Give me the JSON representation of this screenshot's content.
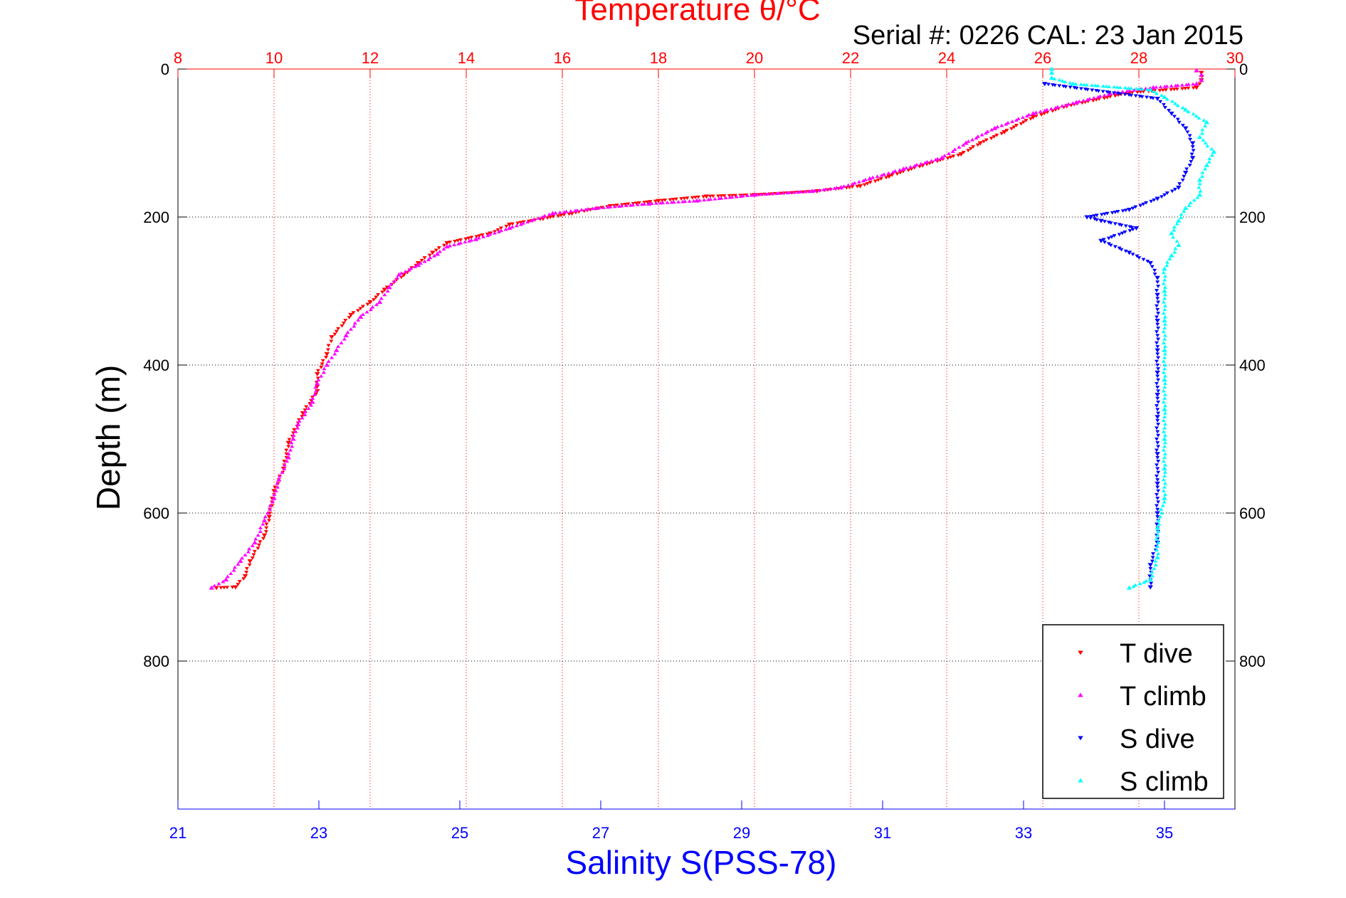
{
  "chart_data": {
    "type": "scatter",
    "title": "Temperature θ/°C",
    "subtitle": "Serial #: 0226  CAL: 23 Jan 2015",
    "xlabel": "Salinity S(PSS-78)",
    "ylabel": "Depth (m)",
    "x_top_axis": {
      "label": "Temperature θ/°C",
      "lim": [
        8,
        30
      ],
      "ticks": [
        8,
        10,
        12,
        14,
        16,
        18,
        20,
        22,
        24,
        26,
        28,
        30
      ],
      "color": "#ff0000"
    },
    "x_bottom_axis": {
      "label": "Salinity S(PSS-78)",
      "lim": [
        21,
        36
      ],
      "ticks": [
        21,
        23,
        25,
        27,
        29,
        31,
        33,
        35
      ],
      "color": "#0000ff"
    },
    "y_axis": {
      "lim": [
        0,
        1000
      ],
      "reversed": true,
      "ticks": [
        0,
        200,
        400,
        600,
        800
      ]
    },
    "grid": true,
    "legend_position": "bottom-right",
    "series": [
      {
        "name": "T dive",
        "axis": "temperature",
        "color": "#ff0000",
        "marker": "triangle-down",
        "points": [
          [
            29.3,
            5
          ],
          [
            29.3,
            15
          ],
          [
            29.2,
            25
          ],
          [
            27.8,
            32
          ],
          [
            26.5,
            50
          ],
          [
            25.8,
            65
          ],
          [
            25.2,
            85
          ],
          [
            24.7,
            100
          ],
          [
            24.3,
            115
          ],
          [
            23.5,
            130
          ],
          [
            22.8,
            145
          ],
          [
            22.2,
            158
          ],
          [
            21.3,
            165
          ],
          [
            20.0,
            170
          ],
          [
            19.0,
            172
          ],
          [
            18.0,
            178
          ],
          [
            17.0,
            185
          ],
          [
            16.2,
            195
          ],
          [
            15.6,
            202
          ],
          [
            14.9,
            210
          ],
          [
            14.5,
            222
          ],
          [
            13.6,
            235
          ],
          [
            13.3,
            248
          ],
          [
            13.0,
            262
          ],
          [
            12.7,
            278
          ],
          [
            12.3,
            298
          ],
          [
            12.0,
            315
          ],
          [
            11.6,
            332
          ],
          [
            11.2,
            362
          ],
          [
            11.1,
            385
          ],
          [
            10.9,
            412
          ],
          [
            10.9,
            435
          ],
          [
            10.6,
            465
          ],
          [
            10.3,
            505
          ],
          [
            10.2,
            540
          ],
          [
            10.0,
            570
          ],
          [
            9.9,
            605
          ],
          [
            9.8,
            630
          ],
          [
            9.5,
            665
          ],
          [
            9.4,
            685
          ],
          [
            9.2,
            700
          ],
          [
            8.8,
            701
          ]
        ]
      },
      {
        "name": "T climb",
        "axis": "temperature",
        "color": "#ff00ff",
        "marker": "triangle-up",
        "points": [
          [
            8.7,
            701
          ],
          [
            9.0,
            690
          ],
          [
            9.3,
            665
          ],
          [
            9.6,
            640
          ],
          [
            9.8,
            610
          ],
          [
            10.0,
            580
          ],
          [
            10.1,
            555
          ],
          [
            10.3,
            525
          ],
          [
            10.4,
            500
          ],
          [
            10.5,
            480
          ],
          [
            10.8,
            450
          ],
          [
            10.9,
            425
          ],
          [
            11.1,
            400
          ],
          [
            11.3,
            380
          ],
          [
            11.5,
            360
          ],
          [
            11.8,
            335
          ],
          [
            12.2,
            315
          ],
          [
            12.4,
            295
          ],
          [
            12.6,
            278
          ],
          [
            13.0,
            265
          ],
          [
            13.4,
            250
          ],
          [
            13.6,
            240
          ],
          [
            14.2,
            230
          ],
          [
            14.9,
            215
          ],
          [
            15.8,
            195
          ],
          [
            16.7,
            188
          ],
          [
            17.8,
            182
          ],
          [
            18.8,
            178
          ],
          [
            20.0,
            170
          ],
          [
            21.2,
            165
          ],
          [
            21.8,
            160
          ],
          [
            22.4,
            148
          ],
          [
            23.1,
            135
          ],
          [
            23.9,
            120
          ],
          [
            24.4,
            100
          ],
          [
            25.0,
            80
          ],
          [
            25.8,
            60
          ],
          [
            26.7,
            45
          ],
          [
            27.5,
            32
          ],
          [
            28.3,
            25
          ],
          [
            29.2,
            20
          ],
          [
            29.3,
            15
          ],
          [
            29.3,
            8
          ],
          [
            29.2,
            2
          ]
        ]
      },
      {
        "name": "S dive",
        "axis": "salinity",
        "color": "#0000ff",
        "marker": "triangle-down",
        "points": [
          [
            33.3,
            20
          ],
          [
            34.9,
            40
          ],
          [
            35.1,
            60
          ],
          [
            35.3,
            80
          ],
          [
            35.4,
            100
          ],
          [
            35.4,
            120
          ],
          [
            35.3,
            140
          ],
          [
            35.2,
            160
          ],
          [
            34.9,
            175
          ],
          [
            34.5,
            190
          ],
          [
            33.9,
            200
          ],
          [
            34.1,
            205
          ],
          [
            34.6,
            215
          ],
          [
            34.1,
            232
          ],
          [
            34.5,
            248
          ],
          [
            34.8,
            262
          ],
          [
            34.9,
            282
          ],
          [
            34.9,
            305
          ],
          [
            34.9,
            340
          ],
          [
            34.9,
            380
          ],
          [
            34.9,
            410
          ],
          [
            34.9,
            440
          ],
          [
            34.9,
            470
          ],
          [
            34.9,
            520
          ],
          [
            34.9,
            560
          ],
          [
            34.9,
            600
          ],
          [
            34.9,
            640
          ],
          [
            34.8,
            670
          ],
          [
            34.8,
            700
          ]
        ]
      },
      {
        "name": "S climb",
        "axis": "salinity",
        "color": "#00ffff",
        "marker": "triangle-up",
        "points": [
          [
            34.5,
            701
          ],
          [
            34.8,
            690
          ],
          [
            34.9,
            660
          ],
          [
            34.9,
            620
          ],
          [
            35.0,
            580
          ],
          [
            35.0,
            540
          ],
          [
            35.0,
            500
          ],
          [
            35.0,
            460
          ],
          [
            35.0,
            420
          ],
          [
            35.0,
            380
          ],
          [
            35.0,
            340
          ],
          [
            35.0,
            300
          ],
          [
            35.0,
            270
          ],
          [
            35.1,
            252
          ],
          [
            35.2,
            238
          ],
          [
            35.1,
            222
          ],
          [
            35.2,
            205
          ],
          [
            35.3,
            188
          ],
          [
            35.5,
            170
          ],
          [
            35.5,
            150
          ],
          [
            35.6,
            130
          ],
          [
            35.7,
            112
          ],
          [
            35.5,
            92
          ],
          [
            35.6,
            72
          ],
          [
            35.3,
            55
          ],
          [
            35.0,
            38
          ],
          [
            34.8,
            28
          ],
          [
            33.7,
            20
          ],
          [
            33.4,
            12
          ],
          [
            33.4,
            5
          ],
          [
            33.4,
            0
          ]
        ]
      }
    ]
  }
}
